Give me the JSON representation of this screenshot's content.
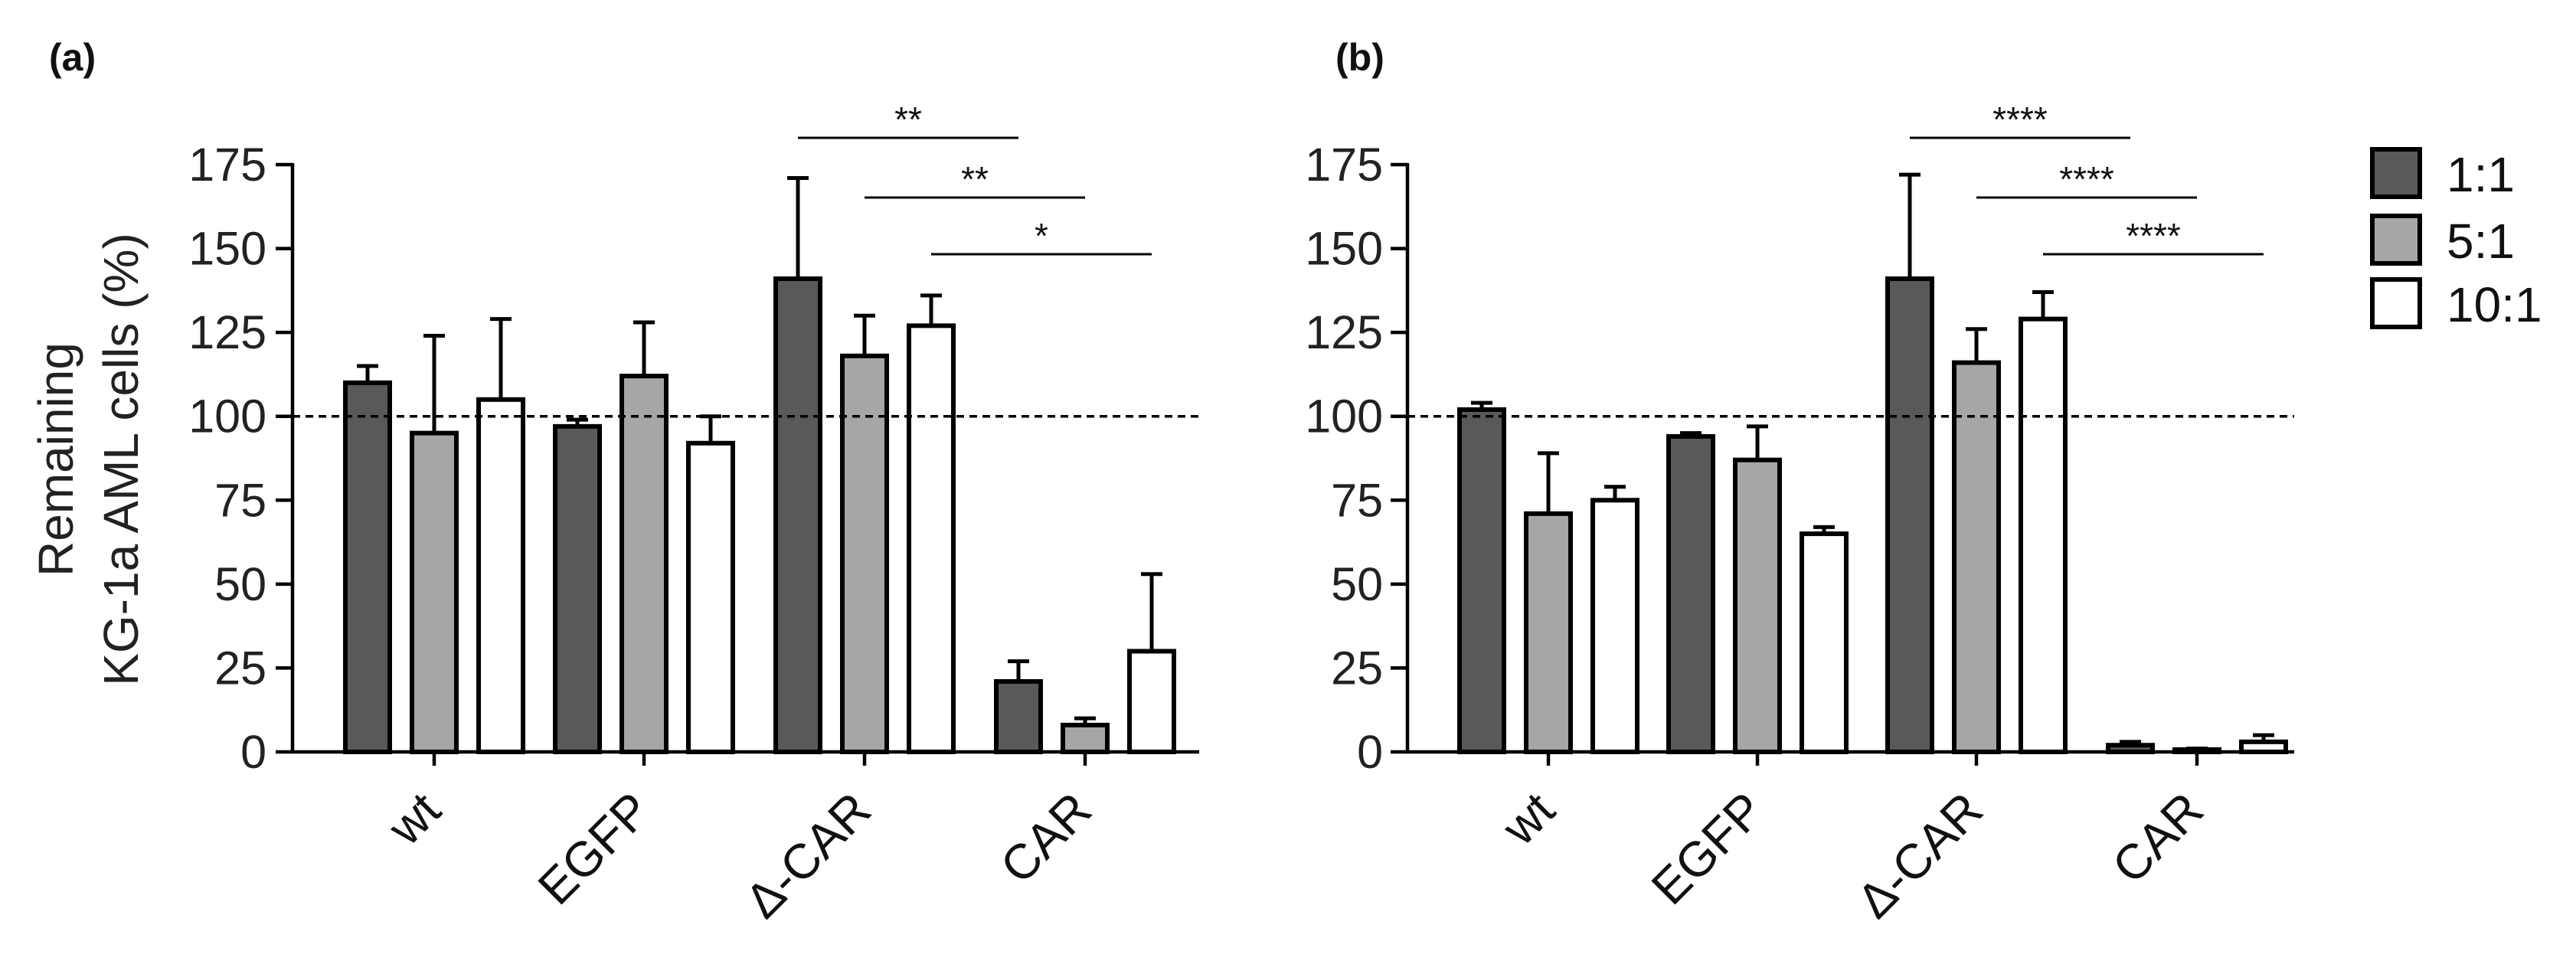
{
  "chart_data": [
    {
      "panel_label": "(a)",
      "type": "bar",
      "categories": [
        "wt",
        "EGFP",
        "Δ-CAR",
        "CAR"
      ],
      "series": [
        {
          "name": "1:1",
          "values": [
            110,
            97,
            141,
            21
          ],
          "errors": [
            5,
            2,
            30,
            6
          ]
        },
        {
          "name": "5:1",
          "values": [
            95,
            112,
            118,
            8
          ],
          "errors": [
            29,
            16,
            12,
            2
          ]
        },
        {
          "name": "10:1",
          "values": [
            105,
            92,
            127,
            30
          ],
          "errors": [
            24,
            8,
            9,
            23
          ]
        }
      ],
      "ylabel": "Remaining KG-1a AML cells (%)",
      "ylabel_lines": [
        "Remaining",
        "KG-1a AML cells (%)"
      ],
      "ylim": [
        0,
        175
      ],
      "yticks": [
        "0",
        "25",
        "50",
        "75",
        "100",
        "125",
        "150",
        "175"
      ],
      "reference_line": 100,
      "significance": [
        {
          "label": "**",
          "from": "Δ-CAR 1:1",
          "to": "CAR 1:1"
        },
        {
          "label": "**",
          "from": "Δ-CAR 5:1",
          "to": "CAR 5:1"
        },
        {
          "label": "*",
          "from": "Δ-CAR 10:1",
          "to": "CAR 10:1"
        }
      ]
    },
    {
      "panel_label": "(b)",
      "type": "bar",
      "categories": [
        "wt",
        "EGFP",
        "Δ-CAR",
        "CAR"
      ],
      "series": [
        {
          "name": "1:1",
          "values": [
            102,
            94,
            141,
            2
          ],
          "errors": [
            2,
            1,
            31,
            1
          ]
        },
        {
          "name": "5:1",
          "values": [
            71,
            87,
            116,
            0.5
          ],
          "errors": [
            18,
            10,
            10,
            0.5
          ]
        },
        {
          "name": "10:1",
          "values": [
            75,
            65,
            129,
            3
          ],
          "errors": [
            4,
            2,
            8,
            2
          ]
        }
      ],
      "ylim": [
        0,
        175
      ],
      "yticks": [
        "0",
        "25",
        "50",
        "75",
        "100",
        "125",
        "150",
        "175"
      ],
      "reference_line": 100,
      "significance": [
        {
          "label": "****",
          "from": "Δ-CAR 1:1",
          "to": "CAR 1:1"
        },
        {
          "label": "****",
          "from": "Δ-CAR 5:1",
          "to": "CAR 5:1"
        },
        {
          "label": "****",
          "from": "Δ-CAR 10:1",
          "to": "CAR 10:1"
        }
      ]
    }
  ],
  "legend": [
    {
      "label": "1:1",
      "color": "#595959"
    },
    {
      "label": "5:1",
      "color": "#a6a6a6"
    },
    {
      "label": "10:1",
      "color": "#ffffff"
    }
  ],
  "colors": {
    "series": [
      "#595959",
      "#a6a6a6",
      "#ffffff"
    ]
  }
}
